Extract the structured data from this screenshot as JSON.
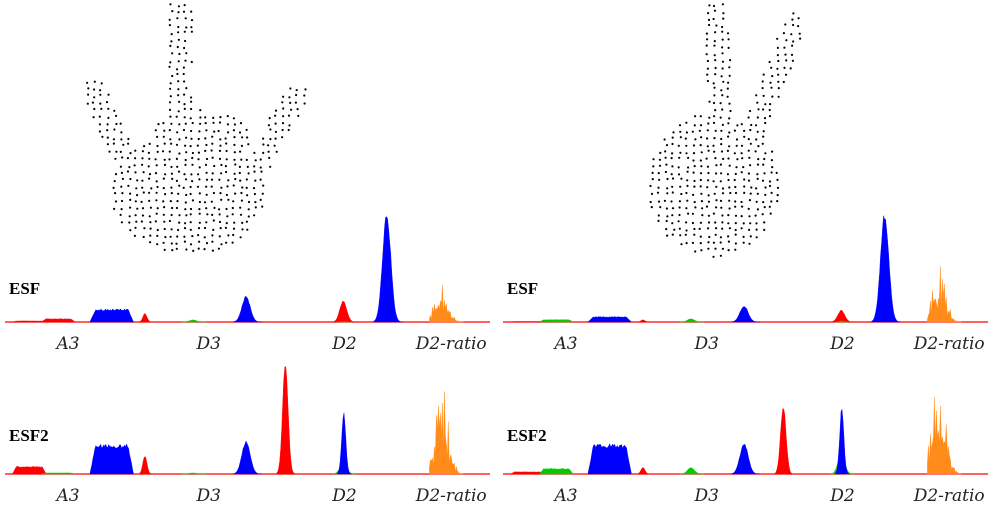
{
  "chart_data": [
    {
      "type": "area",
      "panel": "left",
      "row_label": "ESF",
      "x_labels": [
        "A3",
        "D3",
        "D2",
        "D2-ratio"
      ],
      "bin_count": 640,
      "series": [
        {
          "color": "#ff0000",
          "values": [
            0.01,
            0.03,
            0,
            0,
            0.08,
            0,
            0,
            0,
            0.2,
            0,
            0,
            0,
            0.04,
            0
          ]
        },
        {
          "color": "#00cc00",
          "values": [
            0,
            0,
            0,
            0,
            0,
            0.02,
            0,
            0,
            0,
            0.005,
            0,
            0,
            0,
            0
          ]
        },
        {
          "color": "#0000ff",
          "values": [
            0,
            0,
            0.12,
            0,
            0,
            0,
            0.24,
            0,
            0,
            0,
            1.0,
            0,
            0,
            0
          ]
        },
        {
          "color": "#ff8c1a",
          "values": [
            0,
            0,
            0,
            0,
            0,
            0,
            0,
            0,
            0,
            0,
            0,
            0,
            0.38,
            0
          ]
        }
      ]
    },
    {
      "type": "area",
      "panel": "right",
      "row_label": "ESF",
      "x_labels": [
        "A3",
        "D3",
        "D2",
        "D2-ratio"
      ],
      "bin_count": 640,
      "series": [
        {
          "color": "#ff0000",
          "values": [
            0.005,
            0.02,
            0,
            0,
            0.02,
            0,
            0,
            0,
            0.11,
            0,
            0,
            0,
            0.02,
            0
          ]
        },
        {
          "color": "#00cc00",
          "values": [
            0,
            0.02,
            0,
            0,
            0,
            0.03,
            0,
            0,
            0,
            0.01,
            0,
            0,
            0,
            0
          ]
        },
        {
          "color": "#0000ff",
          "values": [
            0,
            0,
            0.05,
            0,
            0,
            0,
            0.15,
            0,
            0,
            0,
            1.0,
            0,
            0,
            0
          ]
        },
        {
          "color": "#ff8c1a",
          "values": [
            0,
            0,
            0,
            0,
            0,
            0,
            0,
            0,
            0,
            0,
            0,
            0,
            0.52,
            0
          ]
        }
      ]
    },
    {
      "type": "area",
      "panel": "left",
      "row_label": "ESF2",
      "x_labels": [
        "A3",
        "D3",
        "D2",
        "D2-ratio"
      ],
      "bin_count": 640,
      "series": [
        {
          "color": "#ff0000",
          "values": [
            0.07,
            0,
            0,
            0.17,
            0,
            0,
            0,
            1.0,
            0,
            0,
            0,
            0,
            0,
            0
          ]
        },
        {
          "color": "#00cc00",
          "values": [
            0,
            0.01,
            0,
            0,
            0,
            0.01,
            0,
            0,
            0.1,
            0,
            0,
            0,
            0,
            0
          ]
        },
        {
          "color": "#0000ff",
          "values": [
            0,
            0,
            0.27,
            0,
            0,
            0,
            0.3,
            0,
            0,
            0.56,
            0,
            0,
            0,
            0
          ]
        },
        {
          "color": "#ff8c1a",
          "values": [
            0,
            0,
            0,
            0,
            0,
            0,
            0,
            0,
            0,
            0,
            0,
            0,
            0.87,
            0
          ]
        }
      ]
    },
    {
      "type": "area",
      "panel": "right",
      "row_label": "ESF2",
      "x_labels": [
        "A3",
        "D3",
        "D2",
        "D2-ratio"
      ],
      "bin_count": 640,
      "series": [
        {
          "color": "#ff0000",
          "values": [
            0.02,
            0,
            0,
            0.06,
            0,
            0,
            0,
            0.62,
            0,
            0,
            0,
            0,
            0,
            0
          ]
        },
        {
          "color": "#00cc00",
          "values": [
            0,
            0.05,
            0,
            0,
            0,
            0.06,
            0,
            0,
            0.17,
            0,
            0,
            0,
            0,
            0
          ]
        },
        {
          "color": "#0000ff",
          "values": [
            0,
            0,
            0.27,
            0,
            0,
            0,
            0.28,
            0,
            0,
            0.6,
            0,
            0,
            0,
            0
          ]
        },
        {
          "color": "#ff8c1a",
          "values": [
            0,
            0,
            0,
            0,
            0,
            0,
            0,
            0,
            0,
            0,
            0,
            0,
            1.0,
            0
          ]
        }
      ]
    }
  ],
  "point_clouds": [
    {
      "shape": "palm-three-fingers",
      "color": "#000000"
    },
    {
      "shape": "palm-two-fingers",
      "color": "#000000"
    }
  ]
}
